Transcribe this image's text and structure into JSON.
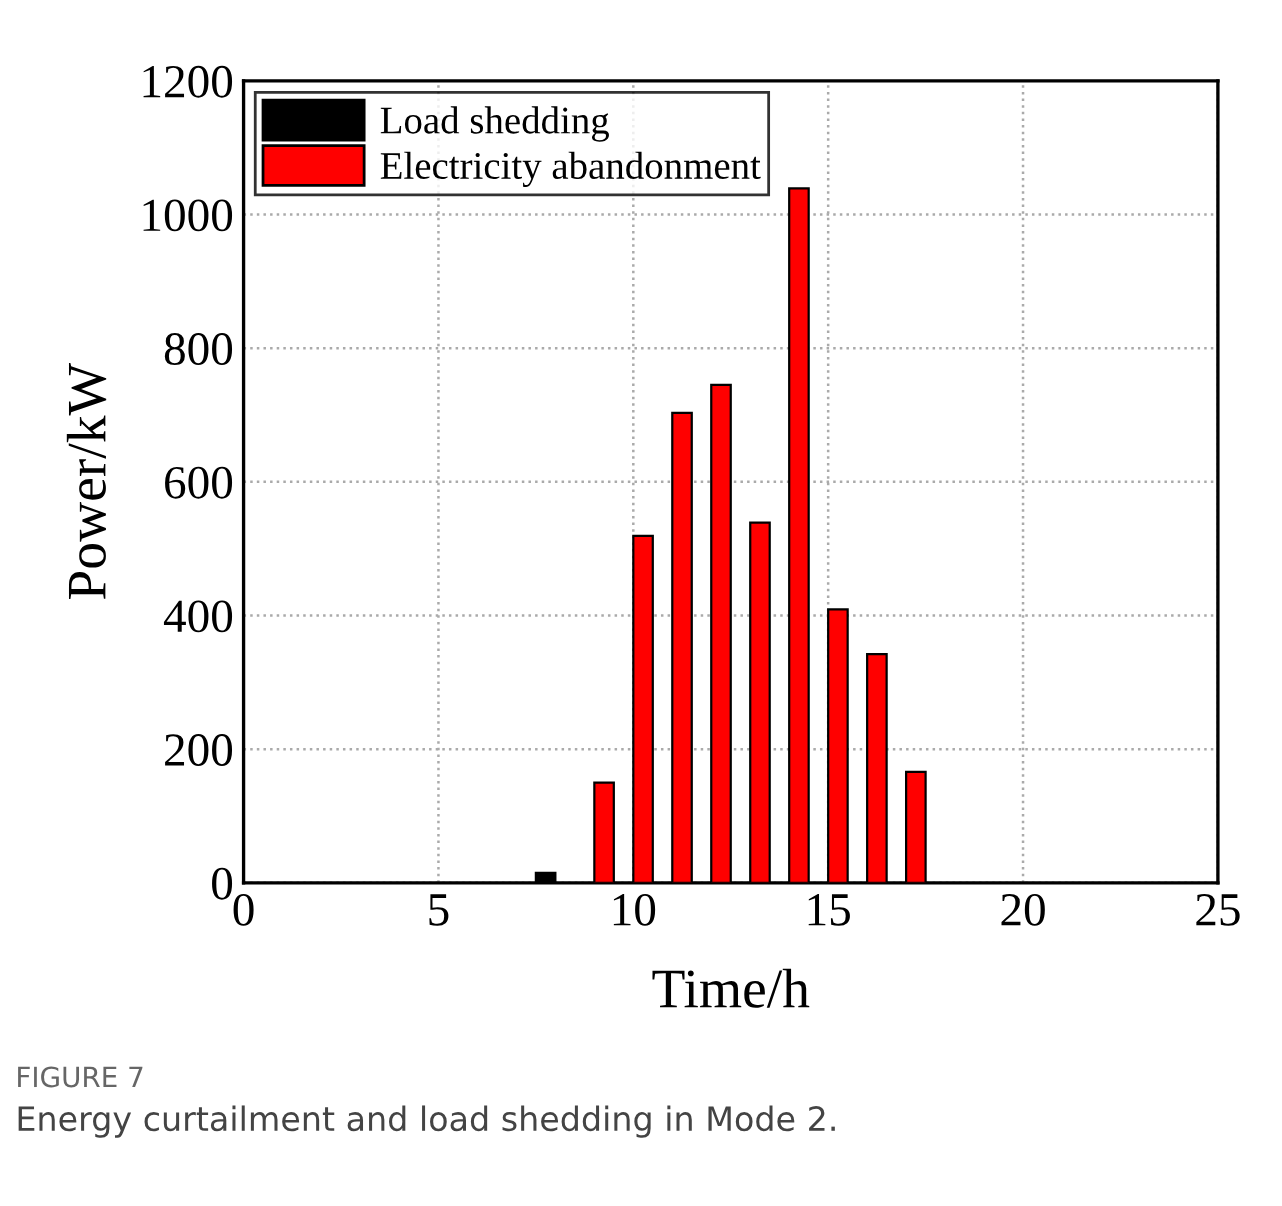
{
  "chart_data": {
    "type": "bar",
    "xlabel": "Time/h",
    "ylabel": "Power/kW",
    "series": [
      {
        "name": "Load shedding",
        "color": "#000000",
        "x": [
          8
        ],
        "values": [
          15
        ]
      },
      {
        "name": "Electricity abandonment",
        "color": "#ff0000",
        "x": [
          9,
          10,
          11,
          12,
          13,
          14,
          15,
          16,
          17
        ],
        "values": [
          150,
          519,
          703,
          745,
          539,
          1039,
          409,
          342,
          166
        ]
      }
    ],
    "xlim": [
      0,
      25
    ],
    "xticks": [
      0,
      5,
      10,
      15,
      20,
      25
    ],
    "ylim": [
      0,
      1200
    ],
    "yticks": [
      0,
      200,
      400,
      600,
      800,
      1000,
      1200
    ],
    "grid": true,
    "legend": "top left",
    "annotations": [
      "FIGURE 7",
      "Energy curtailment and load shedding in Mode 2."
    ]
  }
}
